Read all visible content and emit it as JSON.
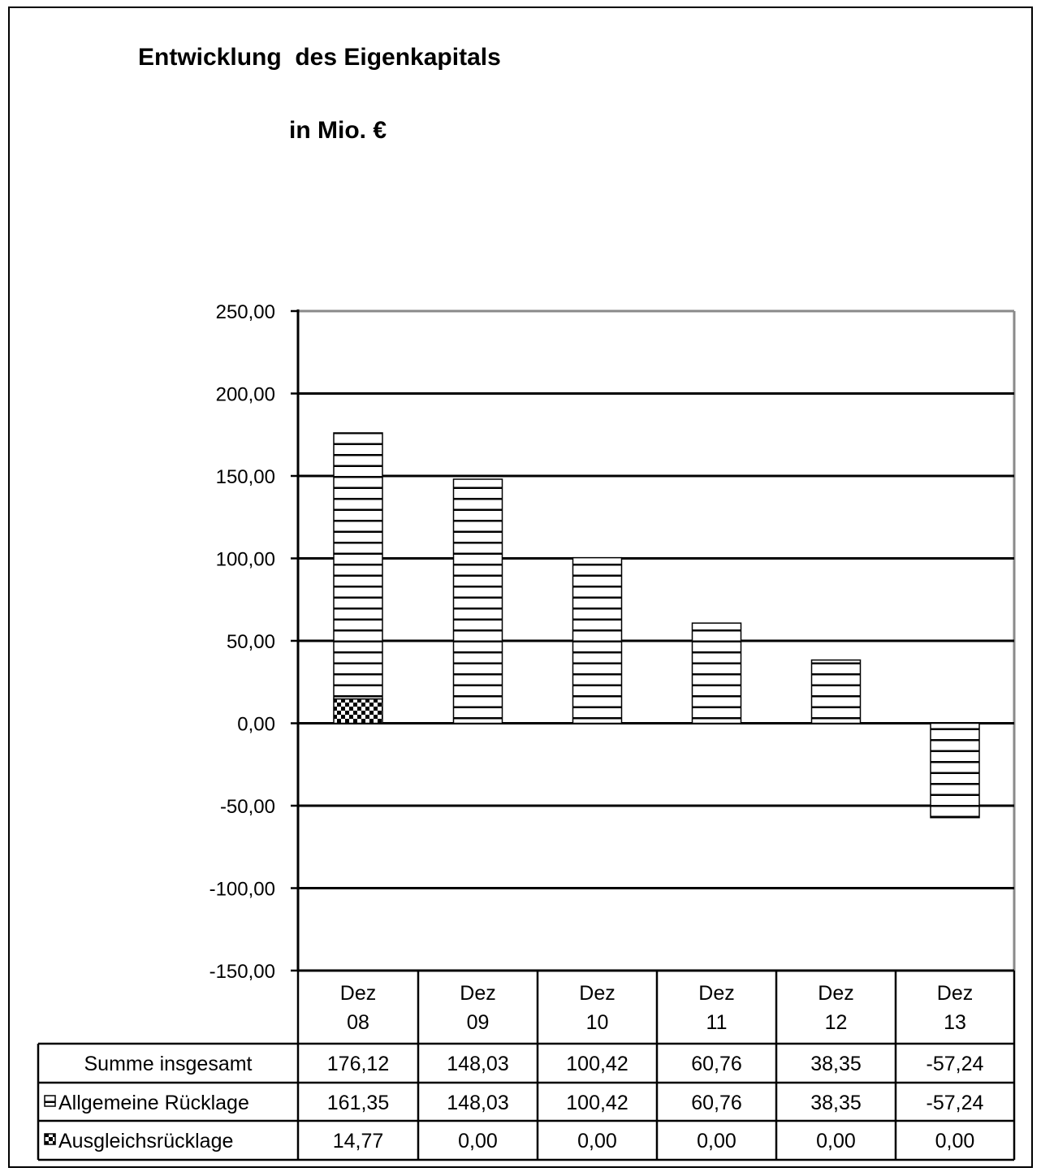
{
  "chart_data": {
    "type": "bar",
    "stacked": true,
    "title": "Entwicklung  des Eigenkapitals",
    "subtitle": "in Mio. €",
    "categories": [
      [
        "Dez",
        "08"
      ],
      [
        "Dez",
        "09"
      ],
      [
        "Dez",
        "10"
      ],
      [
        "Dez",
        "11"
      ],
      [
        "Dez",
        "12"
      ],
      [
        "Dez",
        "13"
      ]
    ],
    "ylim": [
      -150,
      250
    ],
    "ytick_step": 50,
    "yticks": [
      "250,00",
      "200,00",
      "150,00",
      "100,00",
      "50,00",
      "0,00",
      "-50,00",
      "-100,00",
      "-150,00"
    ],
    "grid": true,
    "series": [
      {
        "name": "Ausgleichsrücklage",
        "pattern": "checker",
        "values": [
          14.77,
          0,
          0,
          0,
          0,
          0
        ],
        "labels": [
          "14,77",
          "0,00",
          "0,00",
          "0,00",
          "0,00",
          "0,00"
        ]
      },
      {
        "name": "Allgemeine Rücklage",
        "pattern": "horizontal-lines",
        "values": [
          161.35,
          148.03,
          100.42,
          60.76,
          38.35,
          -57.24
        ],
        "labels": [
          "161,35",
          "148,03",
          "100,42",
          "60,76",
          "38,35",
          "-57,24"
        ]
      }
    ],
    "table_rows": [
      {
        "label": "Summe insgesamt",
        "values": [
          "176,12",
          "148,03",
          "100,42",
          "60,76",
          "38,35",
          "-57,24"
        ]
      },
      {
        "label": "Allgemeine Rücklage",
        "legend_pattern": "horizontal-lines",
        "values": [
          "161,35",
          "148,03",
          "100,42",
          "60,76",
          "38,35",
          "-57,24"
        ]
      },
      {
        "label": "Ausgleichsrücklage",
        "legend_pattern": "checker",
        "values": [
          "14,77",
          "0,00",
          "0,00",
          "0,00",
          "0,00",
          "0,00"
        ]
      }
    ]
  }
}
